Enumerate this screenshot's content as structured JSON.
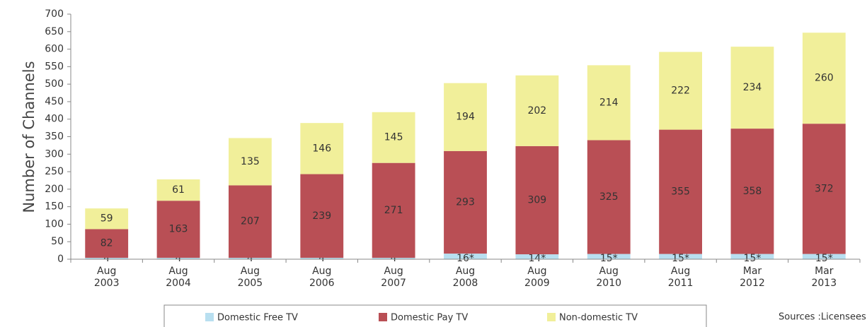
{
  "chart_data": {
    "type": "stacked_bar",
    "ylabel": "Number of Channels",
    "categories": [
      "Aug 2003",
      "Aug 2004",
      "Aug 2005",
      "Aug 2006",
      "Aug 2007",
      "Aug 2008",
      "Aug 2009",
      "Aug 2010",
      "Aug 2011",
      "Mar 2012",
      "Mar 2013"
    ],
    "series": [
      {
        "name": "Domestic Free TV",
        "color": "#b8dff0",
        "values": [
          4,
          4,
          4,
          4,
          4,
          16,
          14,
          15,
          15,
          15,
          15
        ],
        "value_labels": [
          "4",
          "4",
          "4",
          "4",
          "4",
          "16*",
          "14*",
          "15*",
          "15*",
          "15*",
          "15*"
        ]
      },
      {
        "name": "Domestic Pay TV",
        "color": "#b94f55",
        "values": [
          82,
          163,
          207,
          239,
          271,
          293,
          309,
          325,
          355,
          358,
          372
        ]
      },
      {
        "name": "Non-domestic TV",
        "color": "#f1ef9a",
        "values": [
          59,
          61,
          135,
          146,
          145,
          194,
          202,
          214,
          222,
          234,
          260
        ]
      }
    ],
    "ylim": [
      0,
      700
    ],
    "yticks": [
      0,
      50,
      100,
      150,
      200,
      250,
      300,
      350,
      400,
      450,
      500,
      550,
      600,
      650,
      700
    ],
    "legend": "bottom",
    "annotation": "Sources :Licensees"
  }
}
